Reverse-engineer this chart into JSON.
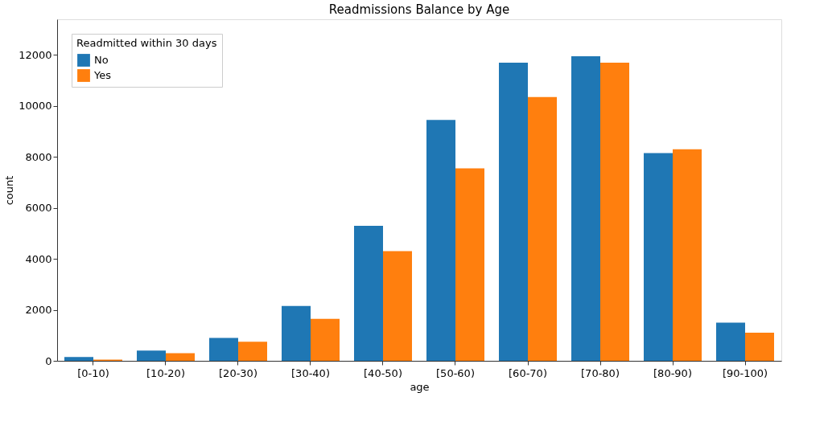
{
  "chart_data": {
    "type": "bar",
    "title": "Readmissions Balance by Age",
    "xlabel": "age",
    "ylabel": "count",
    "legend_title": "Readmitted within 30 days",
    "categories": [
      "[0-10)",
      "[10-20)",
      "[20-30)",
      "[30-40)",
      "[40-50)",
      "[50-60)",
      "[60-70)",
      "[70-80)",
      "[80-90)",
      "[90-100)"
    ],
    "series": [
      {
        "name": "No",
        "color": "#1f77b4",
        "values": [
          150,
          400,
          900,
          2150,
          5300,
          9450,
          11700,
          11950,
          8150,
          1500
        ]
      },
      {
        "name": "Yes",
        "color": "#ff7f0e",
        "values": [
          50,
          300,
          750,
          1650,
          4300,
          7550,
          10350,
          11700,
          8300,
          1100
        ]
      }
    ],
    "ylim": [
      0,
      13400
    ],
    "yticks": [
      0,
      2000,
      4000,
      6000,
      8000,
      10000,
      12000
    ],
    "grid": false,
    "legend": "top left"
  }
}
